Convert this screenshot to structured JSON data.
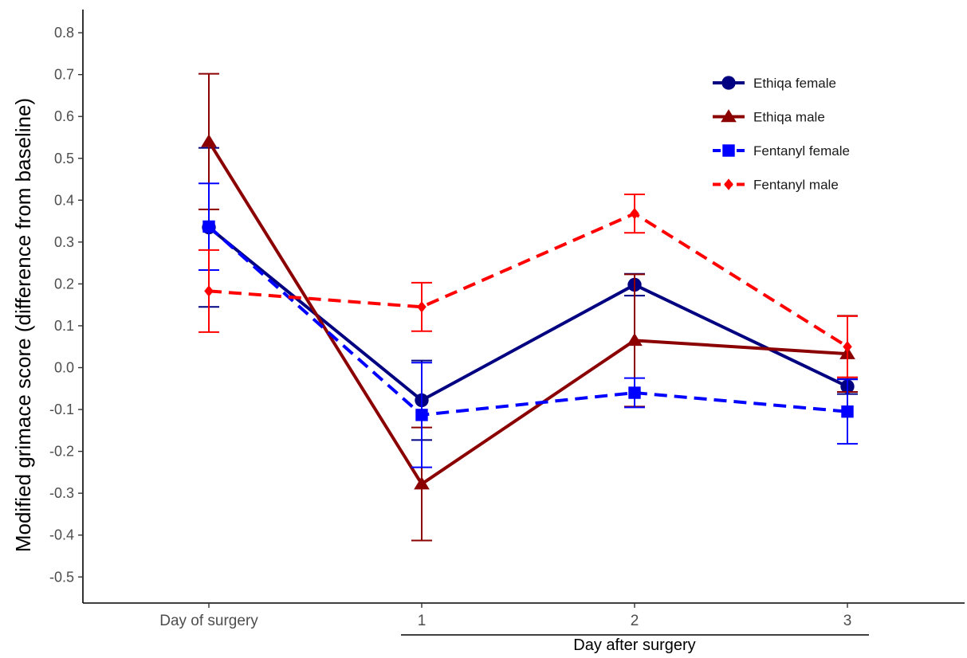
{
  "chart_data": {
    "type": "line",
    "title": "",
    "ylabel": "Modified grimace score (difference from baseline)",
    "xlabel": "Day after surgery",
    "categories": [
      "Day of surgery",
      "1",
      "2",
      "3"
    ],
    "ylim": [
      -0.55,
      0.85
    ],
    "yticks": [
      -0.5,
      -0.4,
      -0.3,
      -0.2,
      -0.1,
      0.0,
      0.1,
      0.2,
      0.3,
      0.4,
      0.5,
      0.6,
      0.7,
      0.8
    ],
    "ytick_labels": [
      "-0.5",
      "-0.4",
      "-0.3",
      "-0.2",
      "-0.1",
      "0.0",
      "0.1",
      "0.2",
      "0.3",
      "0.4",
      "0.5",
      "0.6",
      "0.7",
      "0.8"
    ],
    "grid": false,
    "legend_position": "top-right",
    "series": [
      {
        "name": "Ethiqa female",
        "color": "#000080",
        "marker": "circle",
        "dash": false,
        "values": [
          0.335,
          -0.078,
          0.198,
          -0.045
        ],
        "err_low": [
          0.145,
          -0.173,
          0.172,
          -0.063
        ],
        "err_high": [
          0.525,
          0.017,
          0.224,
          -0.027
        ]
      },
      {
        "name": "Ethiqa male",
        "color": "#8B0000",
        "marker": "triangle",
        "dash": false,
        "values": [
          0.54,
          -0.278,
          0.065,
          0.033
        ],
        "err_low": [
          0.378,
          -0.413,
          -0.093,
          -0.058
        ],
        "err_high": [
          0.702,
          -0.143,
          0.223,
          0.124
        ]
      },
      {
        "name": "Fentanyl female",
        "color": "#0000FF",
        "marker": "square",
        "dash": true,
        "values": [
          0.337,
          -0.113,
          -0.06,
          -0.105
        ],
        "err_low": [
          0.233,
          -0.238,
          -0.095,
          -0.182
        ],
        "err_high": [
          0.44,
          0.012,
          -0.025,
          -0.028
        ]
      },
      {
        "name": "Fentanyl male",
        "color": "#FF0000",
        "marker": "diamond",
        "dash": true,
        "values": [
          0.183,
          0.145,
          0.368,
          0.05
        ],
        "err_low": [
          0.085,
          0.087,
          0.322,
          -0.023
        ],
        "err_high": [
          0.281,
          0.203,
          0.414,
          0.123
        ]
      }
    ]
  }
}
